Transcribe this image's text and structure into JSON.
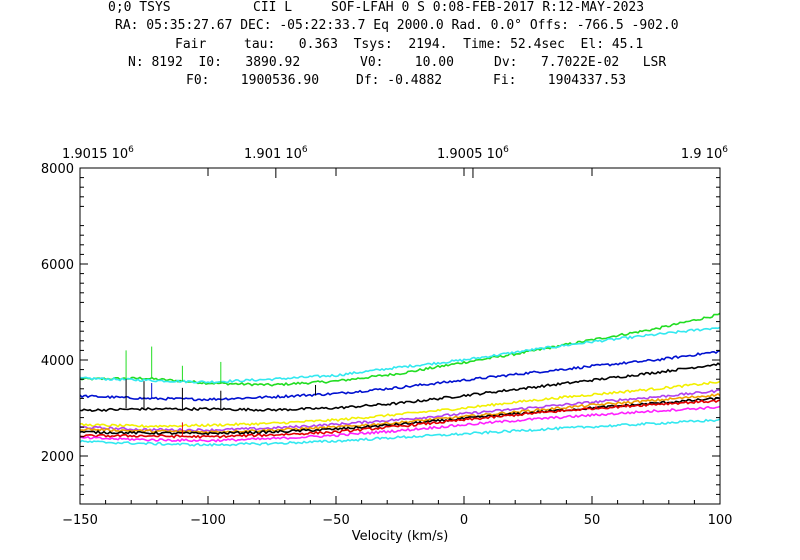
{
  "header": {
    "line1": {
      "a": "0;0 TSYS",
      "b": "CII L",
      "c": "SOF-LFAH 0 S 0:08-FEB-2017 R:12-MAY-2023"
    },
    "line2": "RA: 05:35:27.67 DEC: -05:22:33.7 Eq 2000.0 Rad. 0.0° Offs: -766.5 -902.0",
    "line3": {
      "a": "Fair",
      "b": "tau:   0.363  Tsys:  2194.  Time: 52.4sec  El: 45.1"
    },
    "line4": {
      "a": "N: 8192  I0:   3890.92",
      "b": "V0:    10.00",
      "c": "Dv:   7.7022E-02   LSR"
    },
    "line5": {
      "a": "F0:    1900536.90",
      "b": "Df: -0.4882",
      "c": "Fi:    1904337.53"
    }
  },
  "colors": {
    "green": "#22dd22",
    "cyan": "#33e8f0",
    "blue": "#0010d0",
    "black": "#000000",
    "yellow": "#f2f000",
    "orange": "#f0a000",
    "magenta": "#ff20ff",
    "red": "#e00000",
    "violet": "#b040f0"
  },
  "chart_data": {
    "type": "line",
    "xlabel": "Velocity (km/s)",
    "xlim": [
      -150,
      100
    ],
    "ylim": [
      1000,
      8000
    ],
    "x_ticks": [
      -150,
      -100,
      -50,
      0,
      50,
      100
    ],
    "x_tick_labels": [
      "−150",
      "−100",
      "−50",
      "0",
      "50",
      "100"
    ],
    "y_ticks": [
      2000,
      4000,
      6000,
      8000
    ],
    "y_tick_labels": [
      "2000",
      "4000",
      "6000",
      "8000"
    ],
    "top_axis": {
      "ticks_velocity": [
        -150,
        -73.5,
        3.5,
        100
      ],
      "labels": [
        "1.9015 10",
        "1.901 10",
        "1.9005 10",
        "1.9 10"
      ],
      "exponent": "6"
    },
    "series": [
      {
        "color": "green",
        "x": [
          -150,
          -125,
          -100,
          -75,
          -50,
          -25,
          0,
          25,
          50,
          75,
          100
        ],
        "y": [
          3600,
          3620,
          3520,
          3480,
          3560,
          3720,
          3950,
          4170,
          4420,
          4650,
          4950
        ]
      },
      {
        "color": "cyan",
        "x": [
          -150,
          -125,
          -100,
          -75,
          -50,
          -25,
          0,
          25,
          50,
          75,
          100
        ],
        "y": [
          3620,
          3580,
          3540,
          3600,
          3680,
          3850,
          4000,
          4200,
          4380,
          4530,
          4680
        ]
      },
      {
        "color": "blue",
        "x": [
          -150,
          -125,
          -100,
          -75,
          -50,
          -25,
          0,
          25,
          50,
          75,
          100
        ],
        "y": [
          3250,
          3200,
          3180,
          3230,
          3300,
          3430,
          3580,
          3730,
          3870,
          4000,
          4180
        ]
      },
      {
        "color": "black",
        "x": [
          -150,
          -125,
          -100,
          -75,
          -50,
          -25,
          0,
          25,
          50,
          75,
          100
        ],
        "y": [
          2950,
          2980,
          2980,
          2960,
          3000,
          3100,
          3260,
          3420,
          3580,
          3740,
          3920
        ]
      },
      {
        "color": "yellow",
        "x": [
          -150,
          -125,
          -100,
          -75,
          -50,
          -25,
          0,
          25,
          50,
          75,
          100
        ],
        "y": [
          2650,
          2620,
          2640,
          2680,
          2750,
          2870,
          3000,
          3150,
          3280,
          3400,
          3540
        ]
      },
      {
        "color": "violet",
        "x": [
          -150,
          -125,
          -100,
          -75,
          -50,
          -25,
          0,
          25,
          50,
          75,
          100
        ],
        "y": [
          2600,
          2550,
          2540,
          2580,
          2660,
          2760,
          2880,
          3000,
          3120,
          3230,
          3360
        ]
      },
      {
        "color": "orange",
        "x": [
          -150,
          -125,
          -100,
          -75,
          -50,
          -25,
          0,
          25,
          50,
          75,
          100
        ],
        "y": [
          2560,
          2520,
          2500,
          2540,
          2600,
          2700,
          2820,
          2940,
          3060,
          3160,
          3280
        ]
      },
      {
        "color": "black",
        "x": [
          -150,
          -125,
          -100,
          -75,
          -50,
          -25,
          0,
          25,
          50,
          75,
          100
        ],
        "y": [
          2500,
          2480,
          2470,
          2500,
          2560,
          2660,
          2780,
          2900,
          3000,
          3100,
          3200
        ]
      },
      {
        "color": "red",
        "x": [
          -150,
          -125,
          -100,
          -75,
          -50,
          -25,
          0,
          25,
          50,
          75,
          100
        ],
        "y": [
          2420,
          2420,
          2400,
          2440,
          2500,
          2620,
          2750,
          2880,
          2990,
          3080,
          3150
        ]
      },
      {
        "color": "magenta",
        "x": [
          -150,
          -125,
          -100,
          -75,
          -50,
          -25,
          0,
          25,
          50,
          75,
          100
        ],
        "y": [
          2380,
          2340,
          2320,
          2360,
          2430,
          2530,
          2650,
          2760,
          2850,
          2940,
          3020
        ]
      },
      {
        "color": "cyan",
        "x": [
          -150,
          -125,
          -100,
          -75,
          -50,
          -25,
          0,
          25,
          50,
          75,
          100
        ],
        "y": [
          2300,
          2260,
          2230,
          2260,
          2310,
          2390,
          2460,
          2540,
          2610,
          2680,
          2750
        ]
      }
    ],
    "spikes": [
      {
        "color": "green",
        "x": -132,
        "y0": 3600,
        "y1": 4200
      },
      {
        "color": "green",
        "x": -122,
        "y0": 3620,
        "y1": 4280
      },
      {
        "color": "green",
        "x": -110,
        "y0": 3560,
        "y1": 3880
      },
      {
        "color": "green",
        "x": -95,
        "y0": 3500,
        "y1": 3960
      },
      {
        "color": "black",
        "x": -132,
        "y0": 3000,
        "y1": 3600
      },
      {
        "color": "black",
        "x": -125,
        "y0": 2990,
        "y1": 3560
      },
      {
        "color": "black",
        "x": -110,
        "y0": 2980,
        "y1": 3420
      },
      {
        "color": "black",
        "x": -95,
        "y0": 2970,
        "y1": 3360
      },
      {
        "color": "black",
        "x": -58,
        "y0": 3260,
        "y1": 3480
      },
      {
        "color": "red",
        "x": -110,
        "y0": 2400,
        "y1": 2700
      },
      {
        "color": "blue",
        "x": -122,
        "y0": 3200,
        "y1": 3520
      }
    ]
  }
}
